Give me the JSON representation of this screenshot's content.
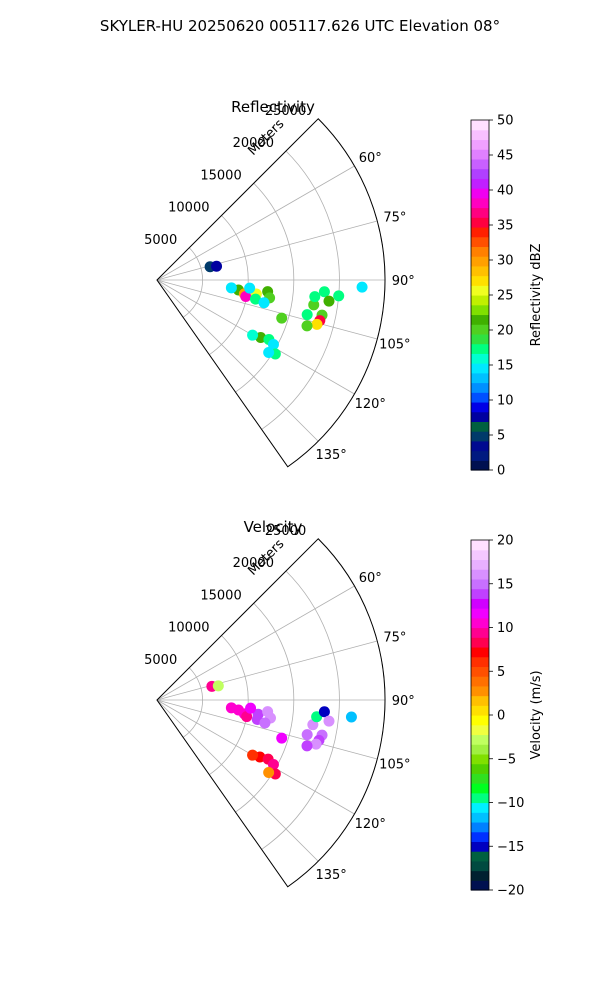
{
  "figure_title": "SKYLER-HU  20250620  005117.626 UTC Elevation 08°",
  "chart_data": [
    {
      "type": "polar-sector",
      "title": "Reflectivity",
      "radial_label": "Meters",
      "radial_ticks": [
        5000,
        10000,
        15000,
        20000,
        25000
      ],
      "radial_tick_labels": [
        "5000",
        "10000",
        "15000",
        "20000",
        "25000"
      ],
      "rlim": [
        0,
        25000
      ],
      "angle_ticks": [
        60,
        75,
        90,
        105,
        120,
        135
      ],
      "angle_tick_labels": [
        "60°",
        "75°",
        "90°",
        "105°",
        "120°",
        "135°"
      ],
      "theta_range_deg": [
        45,
        145
      ],
      "grid": true,
      "colorbar": {
        "label": "Reflectivity dBZ",
        "range": [
          0,
          50
        ],
        "ticks": [
          0,
          5,
          10,
          15,
          20,
          25,
          30,
          35,
          40,
          45,
          50
        ],
        "tick_labels": [
          "0",
          "5",
          "10",
          "15",
          "20",
          "25",
          "30",
          "35",
          "40",
          "45",
          "50"
        ],
        "colors": [
          "#001050",
          "#001a80",
          "#000a90",
          "#003a6a",
          "#006040",
          "#0000a0",
          "#0000e6",
          "#0050ff",
          "#0090ff",
          "#00c0ff",
          "#00e8ff",
          "#00ffd0",
          "#00ff80",
          "#30e040",
          "#50d020",
          "#40b000",
          "#80e000",
          "#c0f000",
          "#f0ff20",
          "#ffe000",
          "#ffc000",
          "#ffa000",
          "#ff8000",
          "#ff5000",
          "#ff2000",
          "#ff0040",
          "#ff0080",
          "#ff00c0",
          "#f000f0",
          "#c020ff",
          "#b040ff",
          "#c860ff",
          "#e080ff",
          "#f0a0ff",
          "#f8c0ff",
          "#ffe0ff"
        ]
      },
      "echoes": [
        {
          "angle": 97,
          "range": 9000,
          "value": 22
        },
        {
          "angle": 99,
          "range": 9700,
          "value": 30
        },
        {
          "angle": 100.5,
          "range": 9900,
          "value": 38
        },
        {
          "angle": 98,
          "range": 11000,
          "value": 25
        },
        {
          "angle": 96,
          "range": 12200,
          "value": 22
        },
        {
          "angle": 101,
          "range": 11000,
          "value": 18
        },
        {
          "angle": 95,
          "range": 10200,
          "value": 15
        },
        {
          "angle": 99,
          "range": 12500,
          "value": 20
        },
        {
          "angle": 96,
          "range": 8200,
          "value": 14
        },
        {
          "angle": 102,
          "range": 12000,
          "value": 14
        },
        {
          "angle": 76,
          "range": 6000,
          "value": 5
        },
        {
          "angle": 77,
          "range": 6700,
          "value": 8
        },
        {
          "angle": 99,
          "range": 17400,
          "value": 20
        },
        {
          "angle": 96,
          "range": 17400,
          "value": 18
        },
        {
          "angle": 94,
          "range": 18400,
          "value": 17
        },
        {
          "angle": 97,
          "range": 19000,
          "value": 22
        },
        {
          "angle": 95,
          "range": 20000,
          "value": 18
        },
        {
          "angle": 102,
          "range": 18500,
          "value": 20
        },
        {
          "angle": 104,
          "range": 18400,
          "value": 35
        },
        {
          "angle": 105.5,
          "range": 18200,
          "value": 27
        },
        {
          "angle": 107,
          "range": 17200,
          "value": 20
        },
        {
          "angle": 103,
          "range": 16900,
          "value": 18
        },
        {
          "angle": 107,
          "range": 14300,
          "value": 20
        },
        {
          "angle": 92,
          "range": 22500,
          "value": 15
        },
        {
          "angle": 119,
          "range": 13000,
          "value": 22
        },
        {
          "angle": 118,
          "range": 13900,
          "value": 18
        },
        {
          "angle": 120,
          "range": 12100,
          "value": 16
        },
        {
          "angle": 119,
          "range": 14600,
          "value": 15
        },
        {
          "angle": 122,
          "range": 15300,
          "value": 18
        },
        {
          "angle": 123,
          "range": 14600,
          "value": 15
        }
      ]
    },
    {
      "type": "polar-sector",
      "title": "Velocity",
      "radial_label": "Meters",
      "radial_ticks": [
        5000,
        10000,
        15000,
        20000,
        25000
      ],
      "radial_tick_labels": [
        "5000",
        "10000",
        "15000",
        "20000",
        "25000"
      ],
      "rlim": [
        0,
        25000
      ],
      "angle_ticks": [
        60,
        75,
        90,
        105,
        120,
        135
      ],
      "angle_tick_labels": [
        "60°",
        "75°",
        "90°",
        "105°",
        "120°",
        "135°"
      ],
      "theta_range_deg": [
        45,
        145
      ],
      "grid": true,
      "colorbar": {
        "label": "Velocity (m/s)",
        "range": [
          -20,
          20
        ],
        "ticks": [
          -20,
          -15,
          -10,
          -5,
          0,
          5,
          10,
          15,
          20
        ],
        "tick_labels": [
          "−20",
          "−15",
          "−10",
          "−5",
          "0",
          "5",
          "10",
          "15",
          "20"
        ],
        "colors": [
          "#001050",
          "#002030",
          "#004a40",
          "#006040",
          "#0000c0",
          "#0030ff",
          "#0080ff",
          "#00c0ff",
          "#00f0ff",
          "#00ff80",
          "#00ff20",
          "#30e020",
          "#50d000",
          "#80e000",
          "#a0f040",
          "#c0ff60",
          "#f0ff40",
          "#ffff00",
          "#ffe000",
          "#ffc000",
          "#ff9000",
          "#ff7000",
          "#ff5000",
          "#ff3000",
          "#ff0000",
          "#ff0050",
          "#ff0090",
          "#ff00d0",
          "#f000ff",
          "#d000ff",
          "#c040ff",
          "#c870ff",
          "#d890ff",
          "#e8b0ff",
          "#f4c8ff",
          "#ffe0ff"
        ]
      },
      "echoes": [
        {
          "angle": 97,
          "range": 9000,
          "value": 10
        },
        {
          "angle": 99,
          "range": 9700,
          "value": 11
        },
        {
          "angle": 100.5,
          "range": 10000,
          "value": 9
        },
        {
          "angle": 98,
          "range": 11200,
          "value": 14
        },
        {
          "angle": 96,
          "range": 12200,
          "value": 16
        },
        {
          "angle": 101,
          "range": 11200,
          "value": 14
        },
        {
          "angle": 95,
          "range": 10300,
          "value": 12
        },
        {
          "angle": 99,
          "range": 12600,
          "value": 16
        },
        {
          "angle": 96,
          "range": 8200,
          "value": 11
        },
        {
          "angle": 102,
          "range": 12100,
          "value": 15
        },
        {
          "angle": 76,
          "range": 6200,
          "value": 9
        },
        {
          "angle": 77,
          "range": 6900,
          "value": -3
        },
        {
          "angle": 99,
          "range": 17300,
          "value": 16
        },
        {
          "angle": 96,
          "range": 17600,
          "value": -10
        },
        {
          "angle": 94,
          "range": 18400,
          "value": -15
        },
        {
          "angle": 97,
          "range": 19000,
          "value": 16
        },
        {
          "angle": 95,
          "range": 21400,
          "value": -12
        },
        {
          "angle": 102,
          "range": 18500,
          "value": 15
        },
        {
          "angle": 104,
          "range": 18300,
          "value": 14
        },
        {
          "angle": 105.5,
          "range": 18100,
          "value": 16
        },
        {
          "angle": 107,
          "range": 17200,
          "value": 14
        },
        {
          "angle": 103,
          "range": 16900,
          "value": 15
        },
        {
          "angle": 107,
          "range": 14300,
          "value": 12
        },
        {
          "angle": 119,
          "range": 12900,
          "value": 7
        },
        {
          "angle": 118,
          "range": 13800,
          "value": 8
        },
        {
          "angle": 120,
          "range": 12100,
          "value": 6
        },
        {
          "angle": 119,
          "range": 14600,
          "value": 9
        },
        {
          "angle": 122,
          "range": 15300,
          "value": 8
        },
        {
          "angle": 123,
          "range": 14600,
          "value": 3
        }
      ]
    }
  ]
}
